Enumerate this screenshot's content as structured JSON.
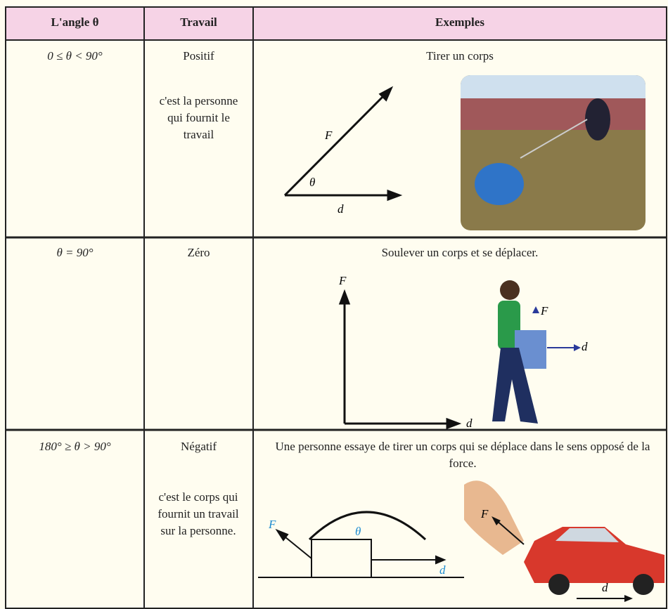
{
  "header": {
    "columns": [
      "L'angle θ",
      "Travail",
      "Exemples"
    ]
  },
  "table": {
    "rows": [
      {
        "angle": "0 ≤ θ < 90°",
        "work": "Positif",
        "work_note": "c'est la personne qui fournit le travail",
        "example": "Tirer un corps",
        "diagram_labels": {
          "force": "F",
          "angle": "θ",
          "displacement": "d"
        }
      },
      {
        "angle": "θ = 90°",
        "work": "Zéro",
        "work_note": "",
        "example": "Soulever un corps et se déplacer.",
        "diagram_labels": {
          "force": "F",
          "displacement": "d"
        },
        "photo_labels": {
          "force": "F",
          "displacement": "d"
        }
      },
      {
        "angle": "180° ≥ θ > 90°",
        "work": "Négatif",
        "work_note": "c'est le corps qui fournit un travail sur la personne.",
        "example": "Une personne essaye de tirer un corps qui se déplace dans le sens opposé de la force.",
        "diagram_labels": {
          "force": "F",
          "angle": "θ",
          "displacement": "d"
        },
        "photo_labels": {
          "force": "F",
          "displacement": "d"
        }
      }
    ]
  }
}
